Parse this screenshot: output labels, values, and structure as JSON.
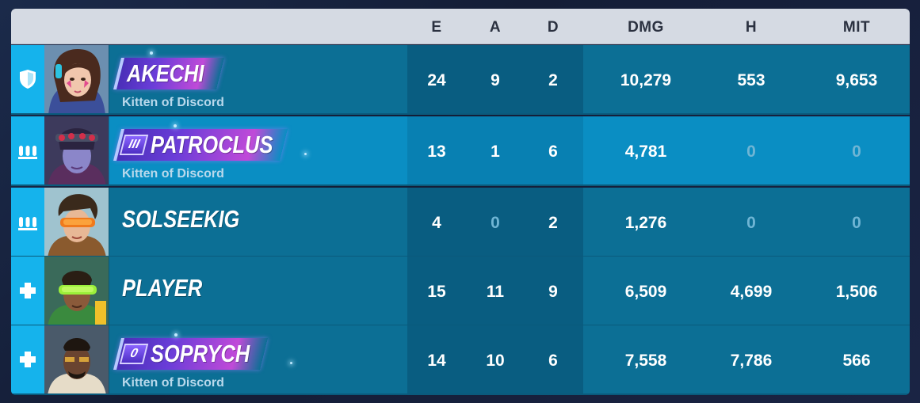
{
  "header": {
    "columns": [
      "E",
      "A",
      "D",
      "DMG",
      "H",
      "MIT"
    ]
  },
  "colors": {
    "header_bg": "#d5dae3",
    "row_bg": "#0c6f95",
    "row_highlight_bg": "#0a8ec3",
    "role_strip": "#15b3ec",
    "zero_value": "#6fb5d4"
  },
  "players": [
    {
      "role_icon": "tank-shield-icon",
      "name": "AKECHI",
      "rank_badge": "",
      "title": "Kitten of Discord",
      "stats": {
        "e": "24",
        "a": "9",
        "d": "2",
        "dmg": "10,279",
        "h": "553",
        "mit": "9,653"
      }
    },
    {
      "role_icon": "damage-bullets-icon",
      "name": "PATROCLUS",
      "rank_badge": "III",
      "title": "Kitten of Discord",
      "stats": {
        "e": "13",
        "a": "1",
        "d": "6",
        "dmg": "4,781",
        "h": "0",
        "mit": "0"
      }
    },
    {
      "role_icon": "damage-bullets-icon",
      "name": "SOLSEEKIG",
      "rank_badge": "",
      "title": "",
      "stats": {
        "e": "4",
        "a": "0",
        "d": "2",
        "dmg": "1,276",
        "h": "0",
        "mit": "0"
      }
    },
    {
      "role_icon": "support-cross-icon",
      "name": "PLAYER",
      "rank_badge": "",
      "title": "",
      "stats": {
        "e": "15",
        "a": "11",
        "d": "9",
        "dmg": "6,509",
        "h": "4,699",
        "mit": "1,506"
      }
    },
    {
      "role_icon": "support-cross-icon",
      "name": "SOPRYCH",
      "rank_badge": "0",
      "title": "Kitten of Discord",
      "stats": {
        "e": "14",
        "a": "10",
        "d": "6",
        "dmg": "7,558",
        "h": "7,786",
        "mit": "566"
      }
    }
  ]
}
